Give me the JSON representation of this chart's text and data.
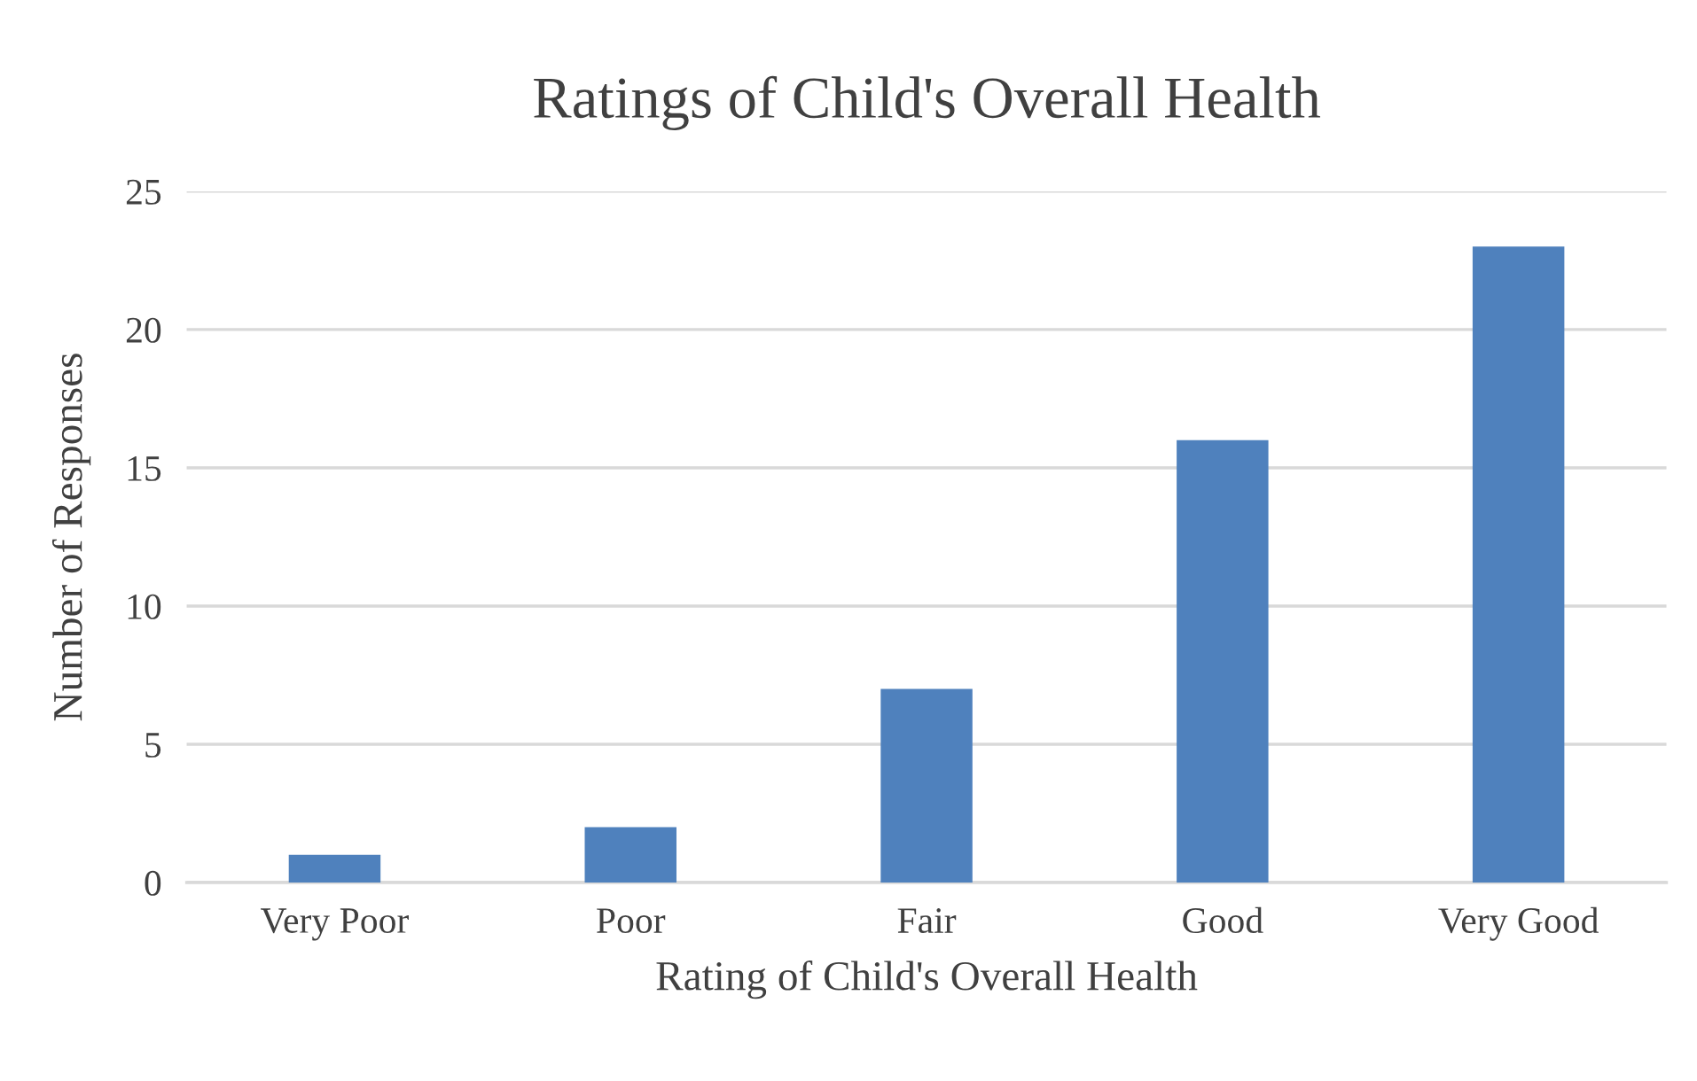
{
  "chart_data": {
    "type": "bar",
    "title": "Ratings of Child's Overall Health",
    "xlabel": "Rating of Child's Overall Health",
    "ylabel": "Number of Responses",
    "categories": [
      "Very Poor",
      "Poor",
      "Fair",
      "Good",
      "Very Good"
    ],
    "values": [
      1,
      2,
      7,
      16,
      23
    ],
    "color": "#4f81bd",
    "ylim": [
      0,
      25
    ],
    "yticks": [
      0,
      5,
      10,
      15,
      20,
      25
    ],
    "grid": "y",
    "legend": false
  }
}
